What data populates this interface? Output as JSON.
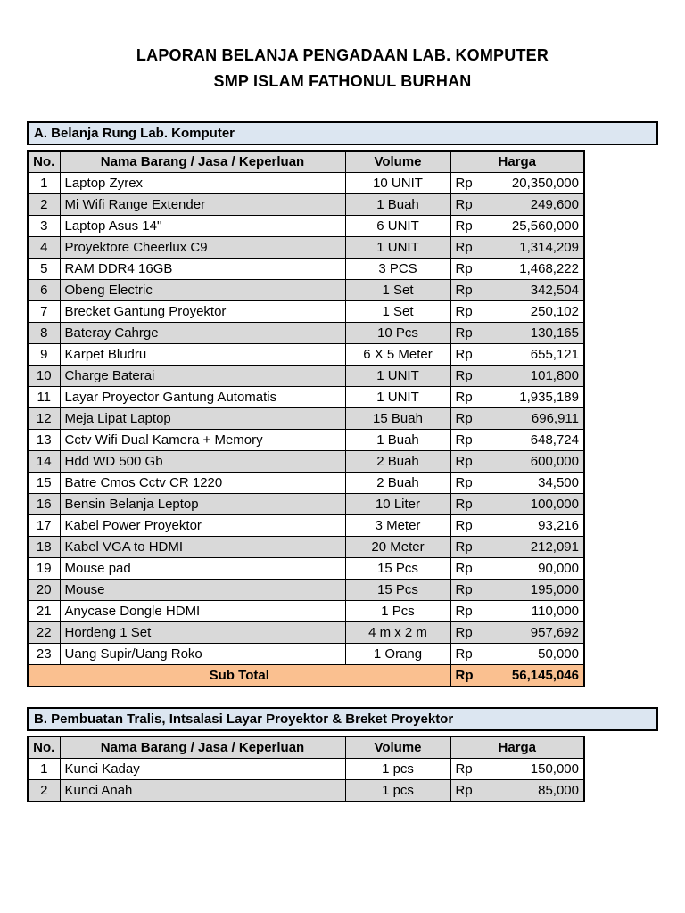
{
  "page": {
    "title_line1": "LAPORAN BELANJA PENGADAAN LAB. KOMPUTER",
    "title_line2": "SMP ISLAM FATHONUL BURHAN"
  },
  "colors": {
    "section_header_bg": "#dce6f1",
    "table_header_bg": "#d9d9d9",
    "row_alt_bg": "#d9d9d9",
    "subtotal_bg": "#fac090",
    "border": "#000000"
  },
  "sections": [
    {
      "title": "A. Belanja Rung Lab. Komputer",
      "columns": [
        "No.",
        "Nama Barang / Jasa / Keperluan",
        "Volume",
        "Harga"
      ],
      "rows": [
        {
          "no": "1",
          "name": "Laptop Zyrex",
          "volume": "10 UNIT",
          "currency": "Rp",
          "amount": "20,350,000"
        },
        {
          "no": "2",
          "name": "Mi Wifi Range Extender",
          "volume": "1 Buah",
          "currency": "Rp",
          "amount": "249,600"
        },
        {
          "no": "3",
          "name": "Laptop Asus 14''",
          "volume": "6 UNIT",
          "currency": "Rp",
          "amount": "25,560,000"
        },
        {
          "no": "4",
          "name": "Proyektore Cheerlux C9",
          "volume": "1 UNIT",
          "currency": "Rp",
          "amount": "1,314,209"
        },
        {
          "no": "5",
          "name": "RAM DDR4 16GB",
          "volume": "3 PCS",
          "currency": "Rp",
          "amount": "1,468,222"
        },
        {
          "no": "6",
          "name": "Obeng Electric",
          "volume": "1 Set",
          "currency": "Rp",
          "amount": "342,504"
        },
        {
          "no": "7",
          "name": "Brecket Gantung Proyektor",
          "volume": "1 Set",
          "currency": "Rp",
          "amount": "250,102"
        },
        {
          "no": "8",
          "name": "Bateray Cahrge",
          "volume": "10 Pcs",
          "currency": "Rp",
          "amount": "130,165"
        },
        {
          "no": "9",
          "name": "Karpet Bludru",
          "volume": "6 X 5 Meter",
          "currency": "Rp",
          "amount": "655,121"
        },
        {
          "no": "10",
          "name": "Charge Baterai",
          "volume": "1 UNIT",
          "currency": "Rp",
          "amount": "101,800"
        },
        {
          "no": "11",
          "name": "Layar Proyector Gantung Automatis",
          "volume": "1 UNIT",
          "currency": "Rp",
          "amount": "1,935,189"
        },
        {
          "no": "12",
          "name": "Meja Lipat Laptop",
          "volume": "15 Buah",
          "currency": "Rp",
          "amount": "696,911"
        },
        {
          "no": "13",
          "name": "Cctv Wifi Dual Kamera + Memory",
          "volume": "1 Buah",
          "currency": "Rp",
          "amount": "648,724"
        },
        {
          "no": "14",
          "name": "Hdd  WD 500 Gb",
          "volume": "2 Buah",
          "currency": "Rp",
          "amount": "600,000"
        },
        {
          "no": "15",
          "name": "Batre Cmos Cctv CR 1220",
          "volume": "2 Buah",
          "currency": "Rp",
          "amount": "34,500"
        },
        {
          "no": "16",
          "name": "Bensin Belanja Leptop",
          "volume": "10 Liter",
          "currency": "Rp",
          "amount": "100,000"
        },
        {
          "no": "17",
          "name": "Kabel Power Proyektor",
          "volume": "3 Meter",
          "currency": "Rp",
          "amount": "93,216"
        },
        {
          "no": "18",
          "name": "Kabel VGA to HDMI",
          "volume": "20 Meter",
          "currency": "Rp",
          "amount": "212,091"
        },
        {
          "no": "19",
          "name": "Mouse pad",
          "volume": "15 Pcs",
          "currency": "Rp",
          "amount": "90,000"
        },
        {
          "no": "20",
          "name": "Mouse",
          "volume": "15 Pcs",
          "currency": "Rp",
          "amount": "195,000"
        },
        {
          "no": "21",
          "name": "Anycase Dongle HDMI",
          "volume": "1 Pcs",
          "currency": "Rp",
          "amount": "110,000"
        },
        {
          "no": "22",
          "name": "Hordeng 1 Set",
          "volume": "4 m x 2 m",
          "currency": "Rp",
          "amount": "957,692"
        },
        {
          "no": "23",
          "name": "Uang Supir/Uang Roko",
          "volume": "1 Orang",
          "currency": "Rp",
          "amount": "50,000"
        }
      ],
      "subtotal": {
        "label": "Sub Total",
        "currency": "Rp",
        "amount": "56,145,046"
      }
    },
    {
      "title": "B. Pembuatan Tralis, Intsalasi Layar Proyektor & Breket Proyektor",
      "columns": [
        "No.",
        "Nama Barang / Jasa / Keperluan",
        "Volume",
        "Harga"
      ],
      "rows": [
        {
          "no": "1",
          "name": "Kunci Kaday",
          "volume": "1 pcs",
          "currency": "Rp",
          "amount": "150,000"
        },
        {
          "no": "2",
          "name": "Kunci Anah",
          "volume": "1 pcs",
          "currency": "Rp",
          "amount": "85,000"
        }
      ]
    }
  ]
}
